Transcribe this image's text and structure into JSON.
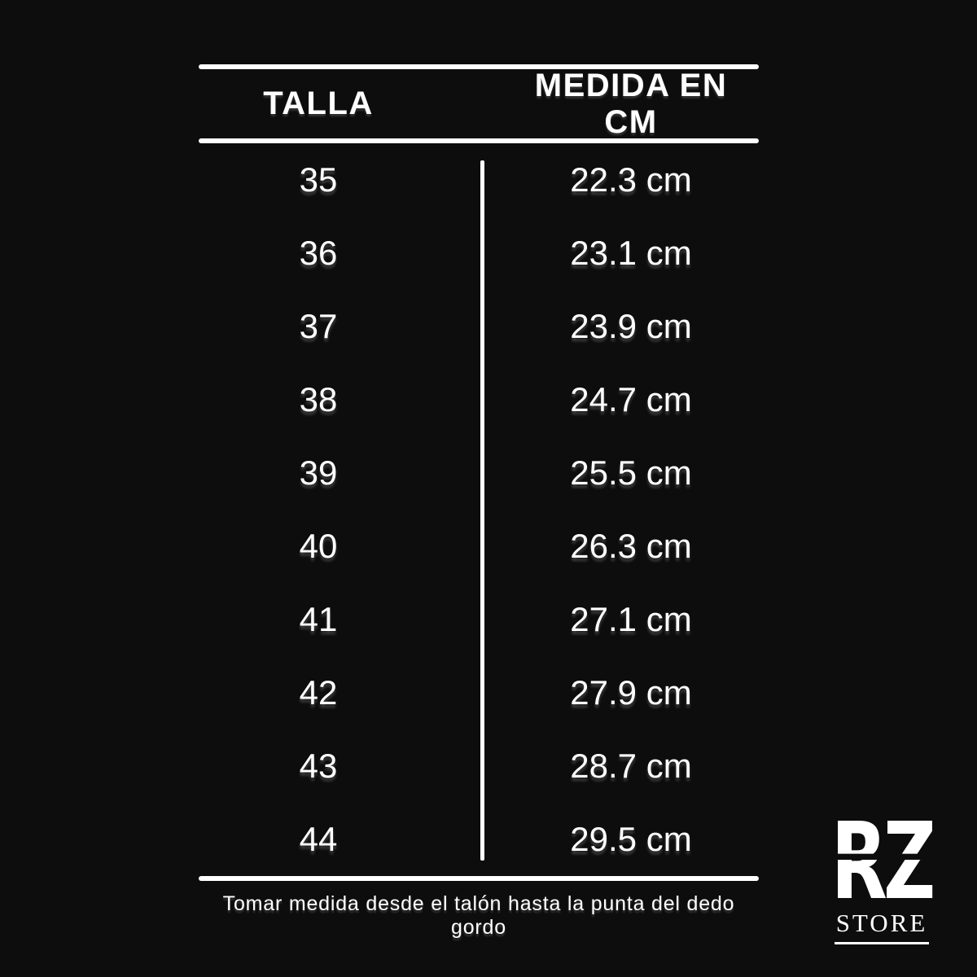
{
  "page": {
    "background_color": "#0d0d0d",
    "text_color": "#ffffff"
  },
  "size_chart": {
    "headers": {
      "size": "TALLA",
      "measurement": "MEDIDA EN CM"
    },
    "rows": [
      {
        "size": "35",
        "cm": "22.3 cm"
      },
      {
        "size": "36",
        "cm": "23.1 cm"
      },
      {
        "size": "37",
        "cm": "23.9 cm"
      },
      {
        "size": "38",
        "cm": "24.7 cm"
      },
      {
        "size": "39",
        "cm": "25.5 cm"
      },
      {
        "size": "40",
        "cm": "26.3 cm"
      },
      {
        "size": "41",
        "cm": "27.1 cm"
      },
      {
        "size": "42",
        "cm": "27.9 cm"
      },
      {
        "size": "43",
        "cm": "28.7 cm"
      },
      {
        "size": "44",
        "cm": "29.5 cm"
      }
    ],
    "note": "Tomar medida desde el talón hasta la punta del dedo gordo"
  },
  "logo": {
    "monogram": "RZ",
    "subtitle": "STORE"
  },
  "chart_data": {
    "type": "table",
    "title": "",
    "columns": [
      "TALLA",
      "MEDIDA EN CM"
    ],
    "rows": [
      [
        "35",
        "22.3 cm"
      ],
      [
        "36",
        "23.1 cm"
      ],
      [
        "37",
        "23.9 cm"
      ],
      [
        "38",
        "24.7 cm"
      ],
      [
        "39",
        "25.5 cm"
      ],
      [
        "40",
        "26.3 cm"
      ],
      [
        "41",
        "27.1 cm"
      ],
      [
        "42",
        "27.9 cm"
      ],
      [
        "43",
        "28.7 cm"
      ],
      [
        "44",
        "29.5 cm"
      ]
    ],
    "sizes": [
      35,
      36,
      37,
      38,
      39,
      40,
      41,
      42,
      43,
      44
    ],
    "measurements_cm": [
      22.3,
      23.1,
      23.9,
      24.7,
      25.5,
      26.3,
      27.1,
      27.9,
      28.7,
      29.5
    ],
    "note": "Tomar medida desde el talón hasta la punta del dedo gordo"
  }
}
